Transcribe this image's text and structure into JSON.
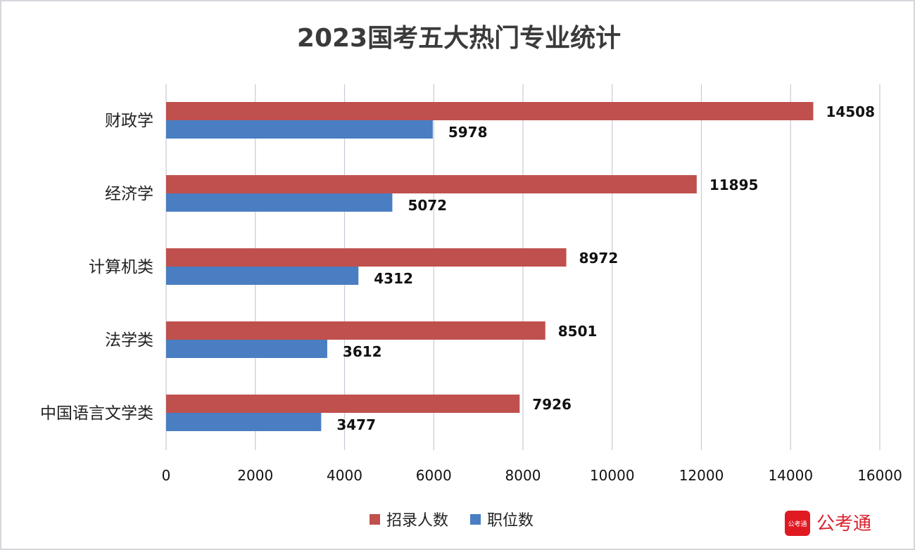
{
  "chart_data": {
    "type": "bar",
    "orientation": "horizontal",
    "title": "2023国考五大热门专业统计",
    "categories": [
      "财政学",
      "经济学",
      "计算机类",
      "法学类",
      "中国语言文学类"
    ],
    "series": [
      {
        "name": "招录人数",
        "color": "#c0504d",
        "values": [
          14508,
          11895,
          8972,
          8501,
          7926
        ]
      },
      {
        "name": "职位数",
        "color": "#4a7ec2",
        "values": [
          5978,
          5072,
          4312,
          3612,
          3477
        ]
      }
    ],
    "xlim": [
      0,
      16000
    ],
    "xticks": [
      "0",
      "2000",
      "4000",
      "6000",
      "8000",
      "10000",
      "12000",
      "14000",
      "16000"
    ],
    "grid": "vertical",
    "legend": "bottom",
    "xlabel": "",
    "ylabel": ""
  },
  "watermark": {
    "text": "公考通",
    "color": "#d9232e"
  }
}
